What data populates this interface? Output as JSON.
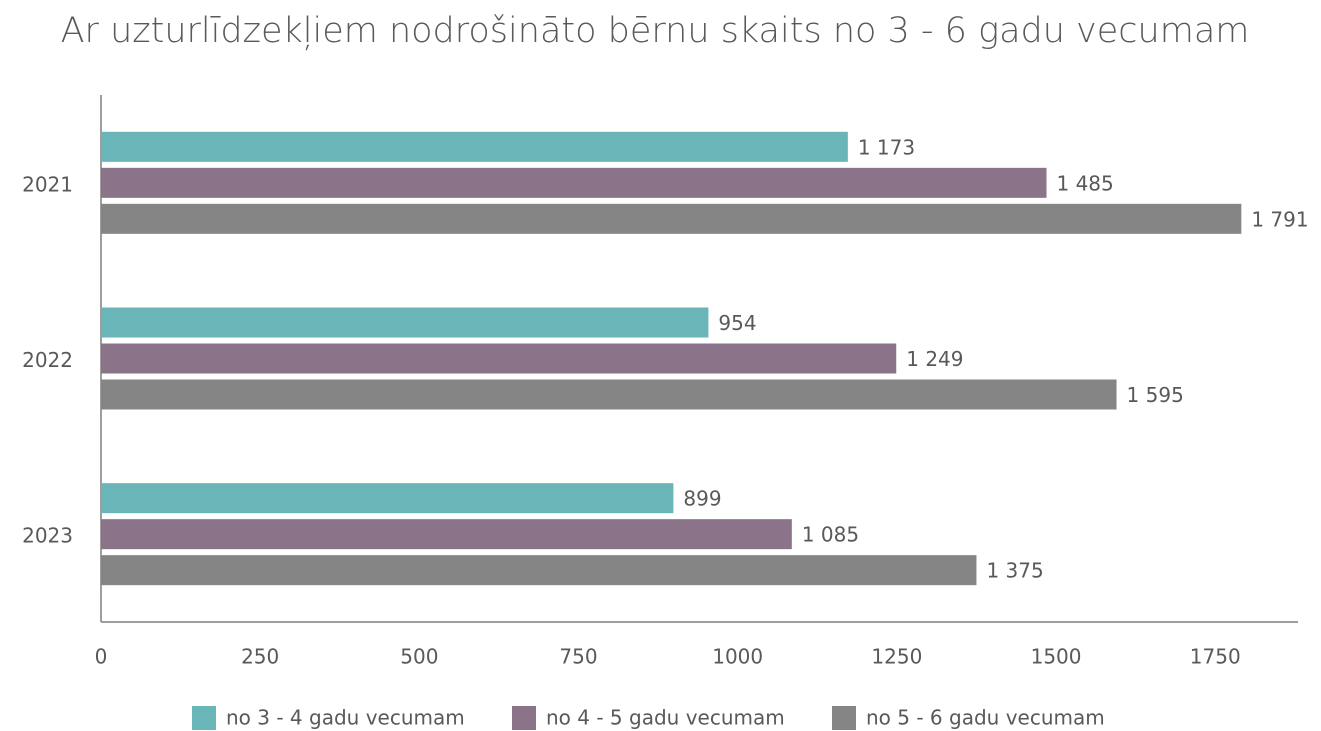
{
  "chart_data": {
    "type": "bar",
    "orientation": "horizontal",
    "title": "Ar uzturlīdzekļiem nodrošināto bērnu skaits no 3 - 6 gadu vecumam",
    "categories": [
      "2021",
      "2022",
      "2023"
    ],
    "series": [
      {
        "name": "no 3 - 4 gadu vecumam",
        "color": "#6ab5b8",
        "values": [
          1173,
          954,
          899
        ],
        "value_labels": [
          "1 173",
          "954",
          "899"
        ]
      },
      {
        "name": "no 4 - 5 gadu vecumam",
        "color": "#8b7389",
        "values": [
          1485,
          1249,
          1085
        ],
        "value_labels": [
          "1 485",
          "1 249",
          "1 085"
        ]
      },
      {
        "name": "no 5 - 6 gadu vecumam",
        "color": "#858585",
        "values": [
          1791,
          1595,
          1375
        ],
        "value_labels": [
          "1 791",
          "1 595",
          "1 375"
        ]
      }
    ],
    "xlim": [
      0,
      1880
    ],
    "xticks": [
      0,
      250,
      500,
      750,
      1000,
      1250,
      1500,
      1750
    ],
    "grid": false,
    "legend": "bottom"
  }
}
